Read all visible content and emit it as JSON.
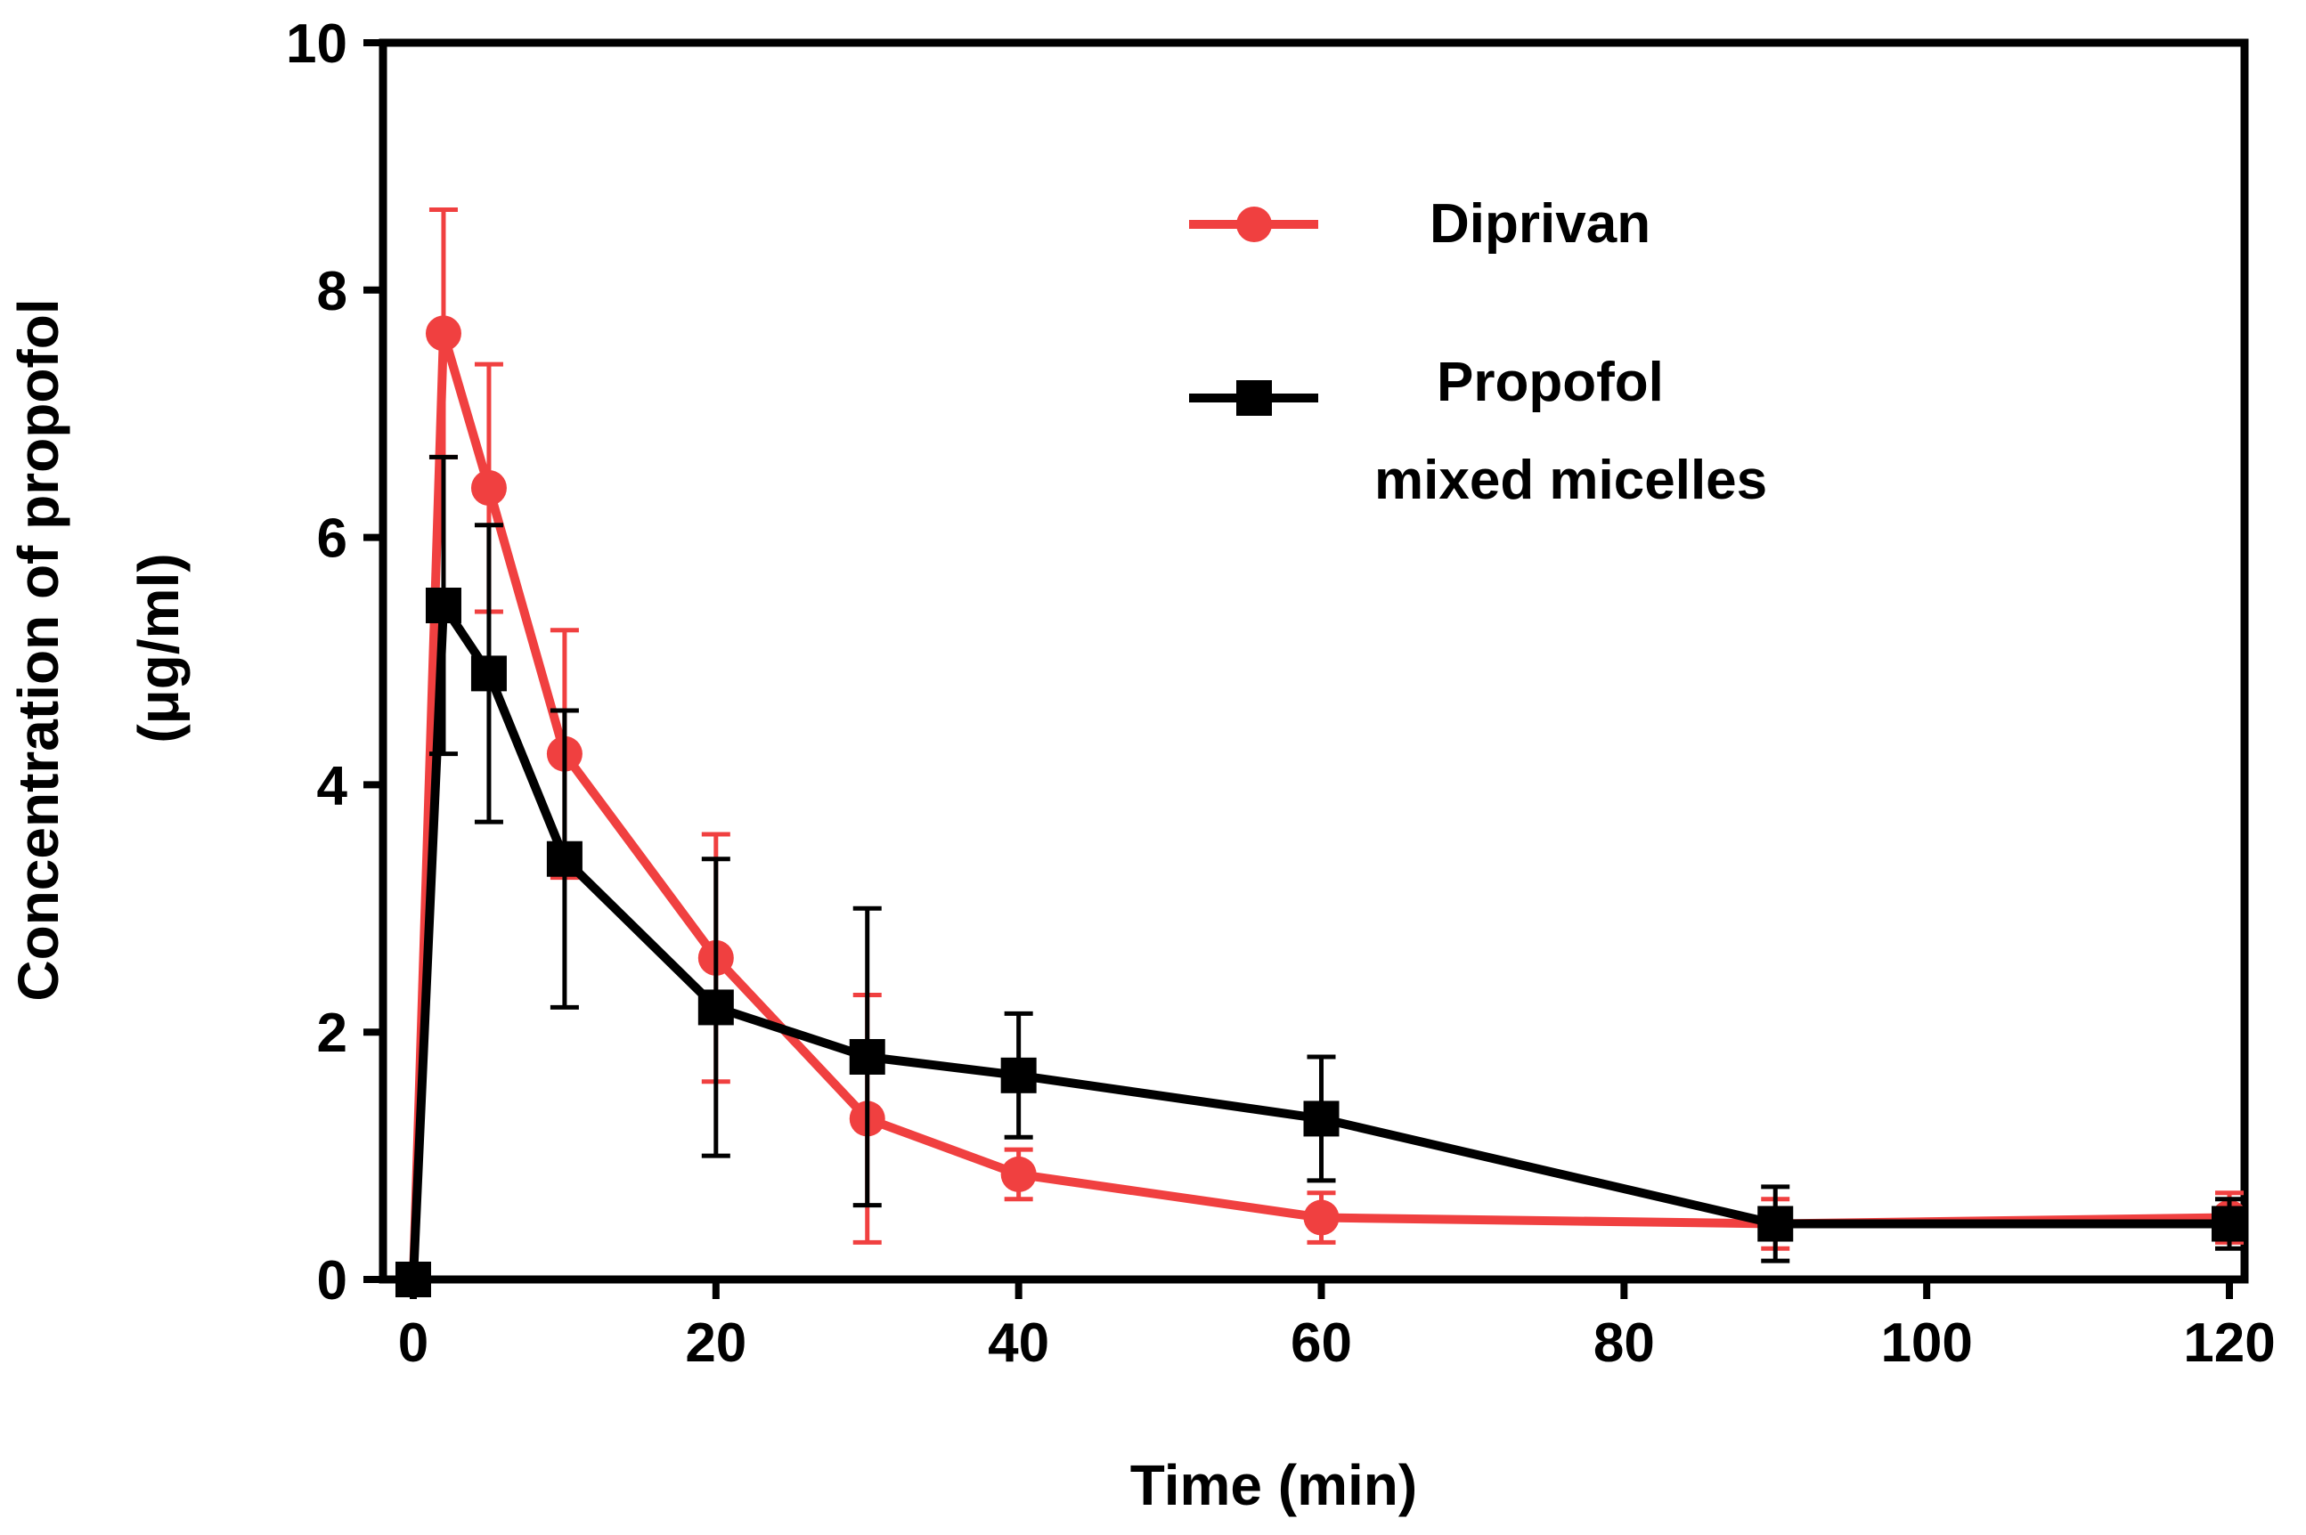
{
  "chart_data": {
    "type": "line",
    "title": "",
    "xlabel": "Time (min)",
    "ylabel_line1": "Concentration of propofol",
    "ylabel_line2": "(μg/ml)",
    "xlim": [
      -2,
      121
    ],
    "ylim": [
      0,
      10
    ],
    "xticks": [
      0,
      20,
      40,
      60,
      80,
      100,
      120
    ],
    "yticks": [
      0,
      2,
      4,
      6,
      8,
      10
    ],
    "grid": false,
    "legend_position": "top-right",
    "series": [
      {
        "name": "Diprivan",
        "color": "#f04040",
        "marker": "circle",
        "x": [
          0,
          2,
          5,
          10,
          20,
          30,
          40,
          60,
          90,
          120
        ],
        "y": [
          0,
          7.65,
          6.4,
          4.25,
          2.6,
          1.3,
          0.85,
          0.5,
          0.45,
          0.5
        ],
        "err": [
          0,
          1.0,
          1.0,
          1.0,
          1.0,
          1.0,
          0.2,
          0.2,
          0.2,
          0.2
        ]
      },
      {
        "name": "Propofol mixed micelles",
        "name_line1": "Propofol",
        "name_line2": "mixed micelles",
        "color": "#000000",
        "marker": "square",
        "x": [
          0,
          2,
          5,
          10,
          20,
          30,
          40,
          60,
          90,
          120
        ],
        "y": [
          0,
          5.45,
          4.9,
          3.4,
          2.2,
          1.8,
          1.65,
          1.3,
          0.45,
          0.45
        ],
        "err": [
          0,
          1.2,
          1.2,
          1.2,
          1.2,
          1.2,
          0.5,
          0.5,
          0.3,
          0.2
        ]
      }
    ]
  }
}
